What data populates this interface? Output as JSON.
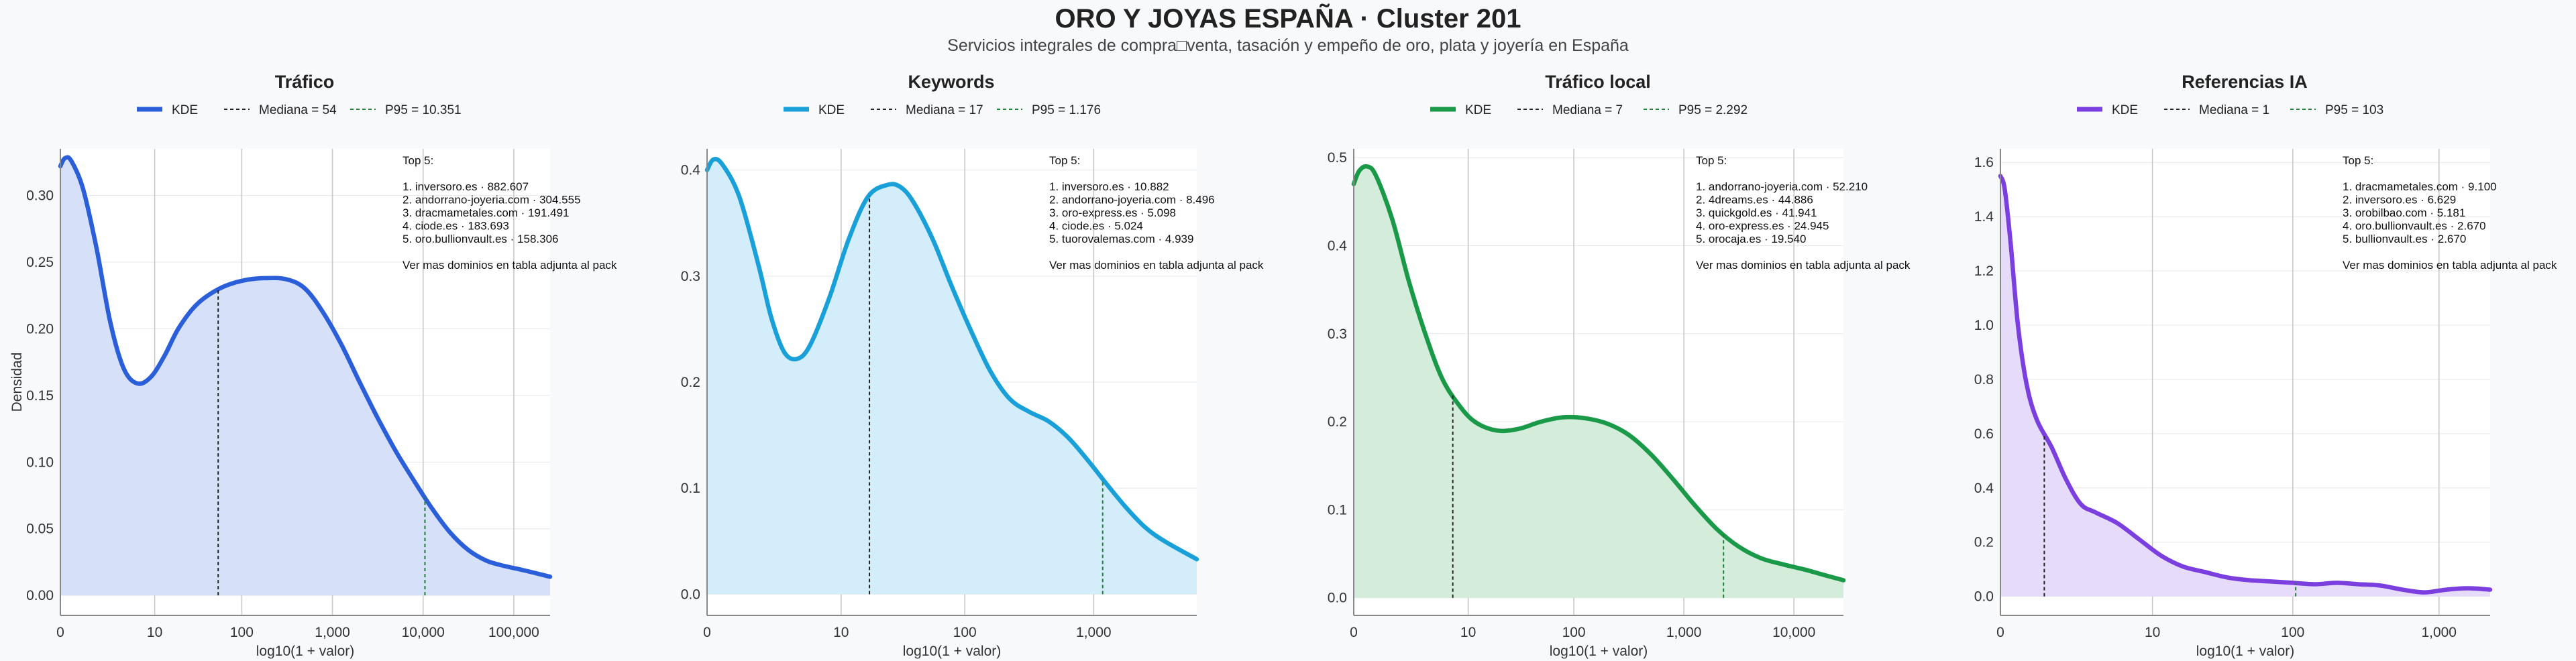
{
  "title": "ORO Y JOYAS ESPAÑA · Cluster 201",
  "subtitle": "Servicios integrales de compra□venta, tasación y empeño de oro, plata y joyería en España",
  "chart_data": [
    {
      "type": "area",
      "title": "Tráfico",
      "xlabel": "log10(1 + valor)",
      "ylabel": "Densidad",
      "xlim": [
        0,
        5.4
      ],
      "ylim": [
        -0.015,
        0.335
      ],
      "xticks": [
        {
          "v": 0,
          "label": "0"
        },
        {
          "v": 1.04,
          "label": "10"
        },
        {
          "v": 2.0,
          "label": "100"
        },
        {
          "v": 3.0,
          "label": "1,000"
        },
        {
          "v": 4.0,
          "label": "10,000"
        },
        {
          "v": 5.0,
          "label": "100,000"
        }
      ],
      "yticks": [
        {
          "v": 0,
          "label": "0.00"
        },
        {
          "v": 0.05,
          "label": "0.05"
        },
        {
          "v": 0.1,
          "label": "0.10"
        },
        {
          "v": 0.15,
          "label": "0.15"
        },
        {
          "v": 0.2,
          "label": "0.20"
        },
        {
          "v": 0.25,
          "label": "0.25"
        },
        {
          "v": 0.3,
          "label": "0.30"
        }
      ],
      "color": "#2b5fd9",
      "fill": "#d6e0f8",
      "legend": {
        "kde": "KDE",
        "median": "Mediana = 54",
        "p95": "P95 = 10.351"
      },
      "median_x": 1.74,
      "p95_x": 4.02,
      "kde_points": [
        [
          0,
          0.322
        ],
        [
          0.05,
          0.328
        ],
        [
          0.12,
          0.326
        ],
        [
          0.25,
          0.305
        ],
        [
          0.4,
          0.26
        ],
        [
          0.55,
          0.205
        ],
        [
          0.7,
          0.17
        ],
        [
          0.85,
          0.159
        ],
        [
          1.0,
          0.164
        ],
        [
          1.15,
          0.18
        ],
        [
          1.3,
          0.2
        ],
        [
          1.5,
          0.218
        ],
        [
          1.75,
          0.23
        ],
        [
          2.0,
          0.236
        ],
        [
          2.25,
          0.238
        ],
        [
          2.5,
          0.237
        ],
        [
          2.7,
          0.23
        ],
        [
          2.9,
          0.212
        ],
        [
          3.1,
          0.188
        ],
        [
          3.3,
          0.16
        ],
        [
          3.5,
          0.133
        ],
        [
          3.7,
          0.108
        ],
        [
          3.9,
          0.086
        ],
        [
          4.1,
          0.065
        ],
        [
          4.3,
          0.047
        ],
        [
          4.5,
          0.034
        ],
        [
          4.7,
          0.026
        ],
        [
          4.9,
          0.022
        ],
        [
          5.1,
          0.019
        ],
        [
          5.4,
          0.014
        ]
      ],
      "top5_lines": [
        "Top 5:",
        "",
        "1. inversoro.es · 882.607",
        "2. andorrano-joyeria.com · 304.555",
        "3. dracmametales.com · 191.491",
        "4. ciode.es · 183.693",
        "5. oro.bullionvault.es · 158.306",
        "",
        "Ver mas dominios en tabla adjunta al pack"
      ]
    },
    {
      "type": "area",
      "title": "Keywords",
      "xlabel": "log10(1 + valor)",
      "ylabel": "",
      "xlim": [
        0,
        3.8
      ],
      "ylim": [
        -0.02,
        0.42
      ],
      "xticks": [
        {
          "v": 0,
          "label": "0"
        },
        {
          "v": 1.04,
          "label": "10"
        },
        {
          "v": 2.0,
          "label": "100"
        },
        {
          "v": 3.0,
          "label": "1,000"
        }
      ],
      "yticks": [
        {
          "v": 0,
          "label": "0.0"
        },
        {
          "v": 0.1,
          "label": "0.1"
        },
        {
          "v": 0.2,
          "label": "0.2"
        },
        {
          "v": 0.3,
          "label": "0.3"
        },
        {
          "v": 0.4,
          "label": "0.4"
        }
      ],
      "color": "#1aa0d8",
      "fill": "#d3eefa",
      "legend": {
        "kde": "KDE",
        "median": "Mediana = 17",
        "p95": "P95 = 1.176"
      },
      "median_x": 1.26,
      "p95_x": 3.07,
      "kde_points": [
        [
          0,
          0.4
        ],
        [
          0.05,
          0.41
        ],
        [
          0.12,
          0.405
        ],
        [
          0.25,
          0.375
        ],
        [
          0.4,
          0.31
        ],
        [
          0.5,
          0.26
        ],
        [
          0.6,
          0.228
        ],
        [
          0.7,
          0.222
        ],
        [
          0.8,
          0.235
        ],
        [
          0.95,
          0.28
        ],
        [
          1.1,
          0.335
        ],
        [
          1.25,
          0.375
        ],
        [
          1.4,
          0.386
        ],
        [
          1.5,
          0.384
        ],
        [
          1.6,
          0.37
        ],
        [
          1.75,
          0.335
        ],
        [
          1.9,
          0.29
        ],
        [
          2.05,
          0.248
        ],
        [
          2.2,
          0.21
        ],
        [
          2.35,
          0.184
        ],
        [
          2.5,
          0.172
        ],
        [
          2.65,
          0.163
        ],
        [
          2.8,
          0.148
        ],
        [
          2.95,
          0.127
        ],
        [
          3.1,
          0.104
        ],
        [
          3.25,
          0.082
        ],
        [
          3.4,
          0.063
        ],
        [
          3.55,
          0.05
        ],
        [
          3.8,
          0.033
        ]
      ],
      "top5_lines": [
        "Top 5:",
        "",
        "1. inversoro.es · 10.882",
        "2. andorrano-joyeria.com · 8.496",
        "3. oro-express.es · 5.098",
        "4. ciode.es · 5.024",
        "5. tuorovalemas.com · 4.939",
        "",
        "Ver mas dominios en tabla adjunta al pack"
      ]
    },
    {
      "type": "area",
      "title": "Tráfico local",
      "xlabel": "log10(1 + valor)",
      "ylabel": "",
      "xlim": [
        0,
        4.45
      ],
      "ylim": [
        -0.02,
        0.51
      ],
      "xticks": [
        {
          "v": 0,
          "label": "0"
        },
        {
          "v": 1.04,
          "label": "10"
        },
        {
          "v": 2.0,
          "label": "100"
        },
        {
          "v": 3.0,
          "label": "1,000"
        },
        {
          "v": 4.0,
          "label": "10,000"
        }
      ],
      "yticks": [
        {
          "v": 0,
          "label": "0.0"
        },
        {
          "v": 0.1,
          "label": "0.1"
        },
        {
          "v": 0.2,
          "label": "0.2"
        },
        {
          "v": 0.3,
          "label": "0.3"
        },
        {
          "v": 0.4,
          "label": "0.4"
        },
        {
          "v": 0.5,
          "label": "0.5"
        }
      ],
      "color": "#1a9a48",
      "fill": "#d4eddb",
      "legend": {
        "kde": "KDE",
        "median": "Mediana = 7",
        "p95": "P95 = 2.292"
      },
      "median_x": 0.9,
      "p95_x": 3.36,
      "kde_points": [
        [
          0,
          0.47
        ],
        [
          0.05,
          0.485
        ],
        [
          0.12,
          0.49
        ],
        [
          0.2,
          0.48
        ],
        [
          0.35,
          0.43
        ],
        [
          0.5,
          0.36
        ],
        [
          0.65,
          0.3
        ],
        [
          0.8,
          0.25
        ],
        [
          0.95,
          0.22
        ],
        [
          1.1,
          0.2
        ],
        [
          1.3,
          0.19
        ],
        [
          1.5,
          0.192
        ],
        [
          1.7,
          0.2
        ],
        [
          1.9,
          0.205
        ],
        [
          2.1,
          0.204
        ],
        [
          2.3,
          0.198
        ],
        [
          2.5,
          0.185
        ],
        [
          2.7,
          0.163
        ],
        [
          2.9,
          0.135
        ],
        [
          3.1,
          0.105
        ],
        [
          3.3,
          0.078
        ],
        [
          3.5,
          0.058
        ],
        [
          3.7,
          0.045
        ],
        [
          3.9,
          0.038
        ],
        [
          4.1,
          0.032
        ],
        [
          4.3,
          0.025
        ],
        [
          4.45,
          0.02
        ]
      ],
      "top5_lines": [
        "Top 5:",
        "",
        "1. andorrano-joyeria.com · 52.210",
        "2. 4dreams.es · 44.886",
        "3. quickgold.es · 41.941",
        "4. oro-express.es · 24.945",
        "5. orocaja.es · 19.540",
        "",
        "Ver mas dominios en tabla adjunta al pack"
      ]
    },
    {
      "type": "area",
      "title": "Referencias IA",
      "xlabel": "log10(1 + valor)",
      "ylabel": "",
      "xlim": [
        0,
        3.35
      ],
      "ylim": [
        -0.07,
        1.65
      ],
      "xticks": [
        {
          "v": 0,
          "label": "0"
        },
        {
          "v": 1.04,
          "label": "10"
        },
        {
          "v": 2.0,
          "label": "100"
        },
        {
          "v": 3.0,
          "label": "1,000"
        }
      ],
      "yticks": [
        {
          "v": 0,
          "label": "0.0"
        },
        {
          "v": 0.2,
          "label": "0.2"
        },
        {
          "v": 0.4,
          "label": "0.4"
        },
        {
          "v": 0.6,
          "label": "0.6"
        },
        {
          "v": 0.8,
          "label": "0.8"
        },
        {
          "v": 1.0,
          "label": "1.0"
        },
        {
          "v": 1.2,
          "label": "1.2"
        },
        {
          "v": 1.4,
          "label": "1.4"
        },
        {
          "v": 1.6,
          "label": "1.6"
        }
      ],
      "color": "#7b3fe0",
      "fill": "#e6dbf8",
      "legend": {
        "kde": "KDE",
        "median": "Mediana = 1",
        "p95": "P95 = 103"
      },
      "median_x": 0.3,
      "p95_x": 2.02,
      "kde_points": [
        [
          0,
          1.55
        ],
        [
          0.03,
          1.5
        ],
        [
          0.07,
          1.3
        ],
        [
          0.12,
          1.0
        ],
        [
          0.18,
          0.78
        ],
        [
          0.25,
          0.65
        ],
        [
          0.35,
          0.55
        ],
        [
          0.45,
          0.43
        ],
        [
          0.55,
          0.34
        ],
        [
          0.65,
          0.31
        ],
        [
          0.8,
          0.27
        ],
        [
          0.95,
          0.21
        ],
        [
          1.1,
          0.15
        ],
        [
          1.25,
          0.11
        ],
        [
          1.4,
          0.09
        ],
        [
          1.55,
          0.07
        ],
        [
          1.7,
          0.06
        ],
        [
          1.85,
          0.055
        ],
        [
          2.0,
          0.05
        ],
        [
          2.15,
          0.045
        ],
        [
          2.3,
          0.05
        ],
        [
          2.45,
          0.045
        ],
        [
          2.6,
          0.04
        ],
        [
          2.75,
          0.025
        ],
        [
          2.9,
          0.015
        ],
        [
          3.05,
          0.025
        ],
        [
          3.2,
          0.03
        ],
        [
          3.35,
          0.025
        ]
      ],
      "top5_lines": [
        "Top 5:",
        "",
        "1. dracmametales.com · 9.100",
        "2. inversoro.es · 6.629",
        "3. orobilbao.com · 5.181",
        "4. oro.bullionvault.es · 2.670",
        "5. bullionvault.es · 2.670",
        "",
        "Ver mas dominios en tabla adjunta al pack"
      ]
    }
  ]
}
